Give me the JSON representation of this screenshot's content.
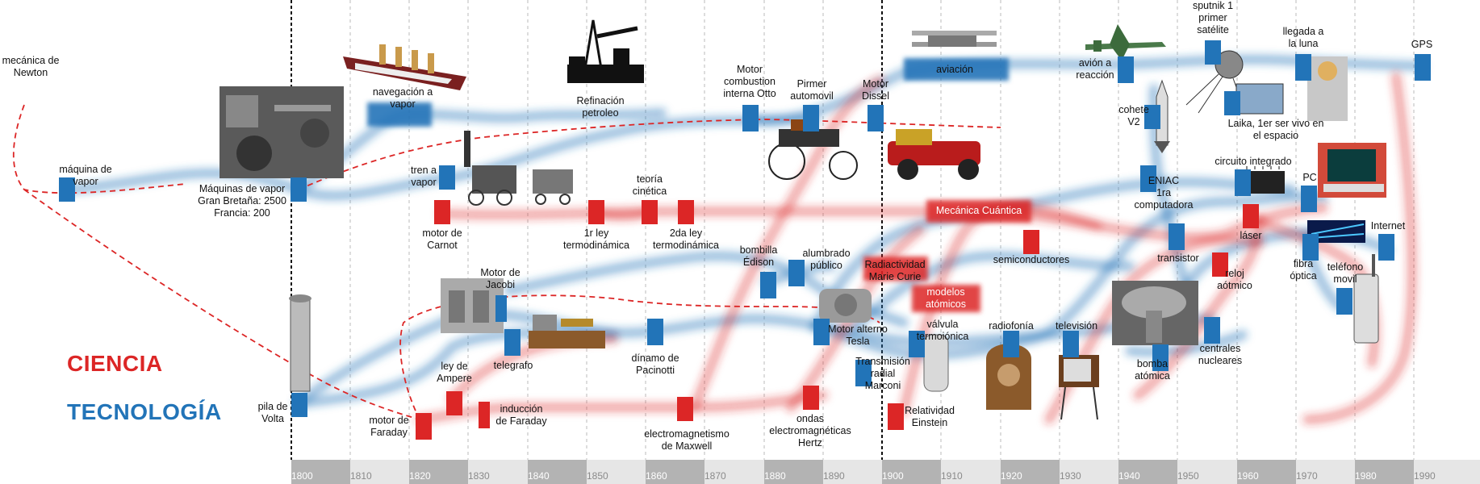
{
  "colors": {
    "science": "#dc2626",
    "technology": "#2274b8",
    "band_dark": "#b3b3b3",
    "band_light": "#e6e6e6"
  },
  "legend": {
    "science": "CIENCIA",
    "technology": "TECNOLOGÍA"
  },
  "years": [
    "1800",
    "1810",
    "1820",
    "1830",
    "1840",
    "1850",
    "1860",
    "1870",
    "1880",
    "1890",
    "1900",
    "1910",
    "1920",
    "1930",
    "1940",
    "1950",
    "1960",
    "1970",
    "1980",
    "1990"
  ],
  "labels": {
    "newton": "mecánica de\nNewton",
    "maquina_vapor": "máquina de\nvapor",
    "maquinas_vapor_gb": "Máquinas de vapor\nGran Bretaña: 2500\nFrancia: 200",
    "navegacion": "navegación a\nvapor",
    "tren": "tren a\nvapor",
    "carnot": "motor de\nCarnot",
    "refinacion": "Refinación\npetroleo",
    "primera_ley": "1r ley\ntermodinámica",
    "teoria_cinetica": "teoría\ncinética",
    "segunda_ley": "2da ley\ntermodinámica",
    "otto": "Motor\ncombustion\ninterna Otto",
    "automovil": "Pirmer\nautomovil",
    "diesel": "Motor\nDissel",
    "aviacion": "aviación",
    "avion_reaccion": "avión a\nreacción",
    "sputnik": "sputnik 1\nprimer\nsatélite",
    "luna": "llegada a\nla luna",
    "gps": "GPS",
    "cohete": "cohete\nV2",
    "laika": "Laika, 1er ser vivo en\nel espacio",
    "eniac": "ENIAC\n1ra\ncomputadora",
    "circuito": "circuito integrado",
    "pc": "PC",
    "laser": "láser",
    "internet": "Internet",
    "mecanica_cuantica": "Mecánica Cuántica",
    "semiconductores": "semiconductores",
    "transistor": "transistor",
    "reloj": "reloj\naótmico",
    "fibra": "fibra\nóptica",
    "telefono": "teléfono\nmovil",
    "bombilla": "bombilla\nÉdison",
    "alumbrado": "alumbrado\npúblico",
    "radiactividad": "Radiactividad\nMarie Curie",
    "modelos": "modelos\natómicos",
    "jacobi": "Motor de\nJacobi",
    "telegrafo": "telegrafo",
    "ampere": "ley de\nAmpere",
    "induccion": "inducción\nde Faraday",
    "motor_faraday": "motor de\nFaraday",
    "volta": "pila de\nVolta",
    "dinamo": "dínamo de\nPacinotti",
    "maxwell": "electromagnetismo\nde Maxwell",
    "hertz": "ondas\nelectromagnéticas\nHertz",
    "tesla": "Motor alterno\nTesla",
    "marconi": "Transmisión\nradial\nMarconi",
    "einstein": "Relatividad\nEinstein",
    "valvula": "válvula\ntermoiónica",
    "radiofonia": "radiofonía",
    "television": "televisión",
    "bomba": "bomba\natómica",
    "centrales": "centrales\nnucleares"
  }
}
